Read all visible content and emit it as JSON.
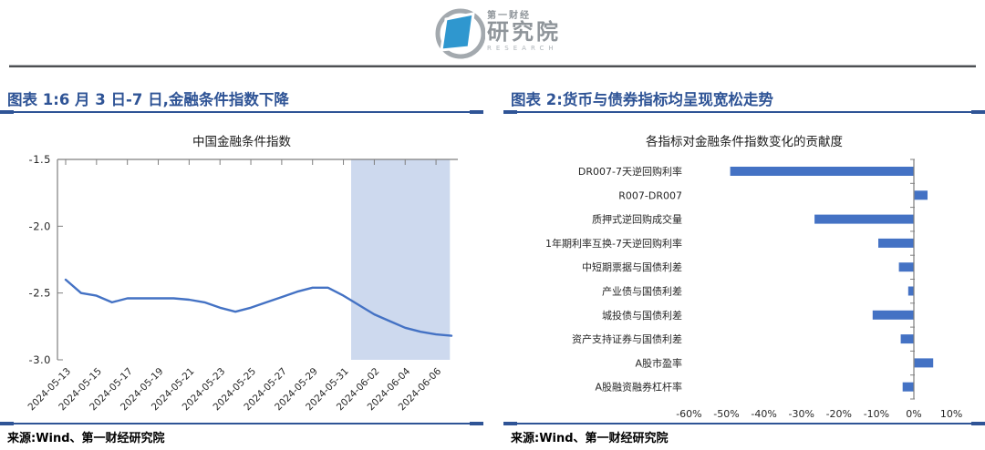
{
  "header": {
    "logo": {
      "brand": "第一财经",
      "institute": "研究院",
      "english": "RESEARCH"
    }
  },
  "left_panel": {
    "title": "图表 1:6 月 3 日-7 日,金融条件指数下降",
    "source": "来源:Wind、第一财经研究院"
  },
  "right_panel": {
    "title": "图表 2:货币与债券指标均呈现宽松走势",
    "source": "来源:Wind、第一财经研究院"
  },
  "colors": {
    "accent_blue": "#2F5496",
    "series_blue": "#4472C4",
    "band_blue": "#cdd9ee",
    "logo_blue": "#2f97cf",
    "logo_gray": "#8f959a",
    "axis_gray": "#7f7f7f"
  },
  "chart_data": [
    {
      "type": "line",
      "title": "中国金融条件指数",
      "x": [
        "2024-05-13",
        "2024-05-14",
        "2024-05-15",
        "2024-05-16",
        "2024-05-17",
        "2024-05-18",
        "2024-05-19",
        "2024-05-20",
        "2024-05-21",
        "2024-05-22",
        "2024-05-23",
        "2024-05-24",
        "2024-05-25",
        "2024-05-26",
        "2024-05-27",
        "2024-05-28",
        "2024-05-29",
        "2024-05-30",
        "2024-05-31",
        "2024-06-01",
        "2024-06-02",
        "2024-06-03",
        "2024-06-04",
        "2024-06-05",
        "2024-06-06",
        "2024-06-07"
      ],
      "values": [
        -2.4,
        -2.5,
        -2.52,
        -2.57,
        -2.54,
        -2.54,
        -2.54,
        -2.54,
        -2.55,
        -2.57,
        -2.61,
        -2.64,
        -2.61,
        -2.57,
        -2.53,
        -2.49,
        -2.46,
        -2.46,
        -2.52,
        -2.59,
        -2.66,
        -2.71,
        -2.76,
        -2.79,
        -2.81,
        -2.82
      ],
      "ylim": [
        -3.0,
        -1.5
      ],
      "yticks": [
        -1.5,
        -2.0,
        -2.5,
        -3.0
      ],
      "xtick_labels": [
        "2024-05-13",
        "2024-05-15",
        "2024-05-17",
        "2024-05-19",
        "2024-05-21",
        "2024-05-23",
        "2024-05-25",
        "2024-05-27",
        "2024-05-29",
        "2024-05-31",
        "2024-06-02",
        "2024-06-04",
        "2024-06-06"
      ],
      "xlabel_rotation": 45,
      "grid": false,
      "line_color": "#4472C4",
      "highlight_band": {
        "start_date": "2024-06-01",
        "end_date": "2024-06-07",
        "day_span": [
          18.5,
          24.9
        ],
        "color": "#cdd9ee"
      }
    },
    {
      "type": "bar",
      "orientation": "horizontal",
      "title": "各指标对金融条件指数变化的贡献度",
      "categories": [
        "DR007-7天逆回购利率",
        "R007-DR007",
        "质押式逆回购成交量",
        "1年期利率互换-7天逆回购利率",
        "中短期票据与国债利差",
        "产业债与国债利差",
        "城投债与国债利差",
        "资产支持证券与国债利差",
        "A股市盈率",
        "A股融资融券杠杆率"
      ],
      "values": [
        -49,
        3.5,
        -26.5,
        -9.5,
        -4,
        -1.5,
        -11,
        -3.5,
        5,
        -3
      ],
      "unit": "%",
      "xticks": [
        -60,
        -50,
        -40,
        -30,
        -20,
        -10,
        0,
        10
      ],
      "xtick_suffix": "%",
      "xlim": [
        -65,
        12
      ],
      "grid": false,
      "bar_color": "#4472C4"
    }
  ]
}
